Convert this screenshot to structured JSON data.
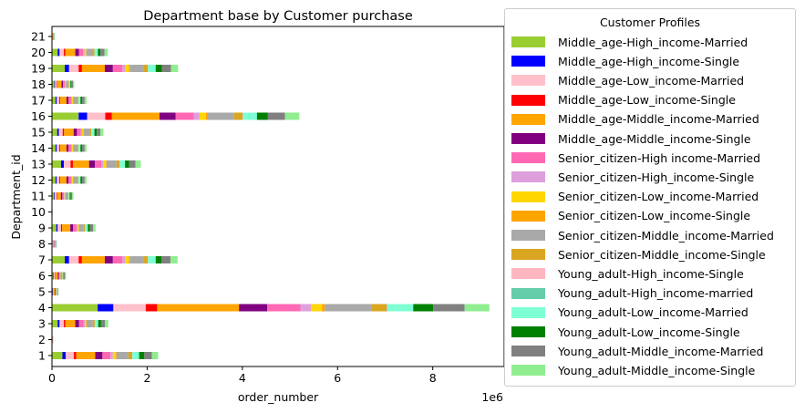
{
  "chart_data": {
    "type": "bar",
    "orientation": "horizontal",
    "stacked": true,
    "title": "Department base by Customer purchase",
    "xlabel": "order_number",
    "ylabel": "Department_id",
    "x_offset_label": "1e6",
    "xlim": [
      0,
      9.5
    ],
    "x_ticks": [
      "0",
      "2",
      "4",
      "6",
      "8"
    ],
    "legend_title": "Customer Profiles",
    "legend_position": "outside-right",
    "categories": [
      "1",
      "2",
      "3",
      "4",
      "5",
      "6",
      "7",
      "8",
      "9",
      "10",
      "11",
      "12",
      "13",
      "14",
      "15",
      "16",
      "17",
      "18",
      "19",
      "20",
      "21"
    ],
    "series": [
      {
        "name": "Middle_age-High_income-Married",
        "color": "#9acd32",
        "values": [
          0.22,
          0.003,
          0.12,
          0.96,
          0.014,
          0.03,
          0.27,
          0.01,
          0.09,
          0.001,
          0.045,
          0.075,
          0.19,
          0.075,
          0.11,
          0.56,
          0.075,
          0.05,
          0.27,
          0.12,
          0.006
        ]
      },
      {
        "name": "Middle_age-High_income-Single",
        "color": "#0000ff",
        "values": [
          0.07,
          0.001,
          0.04,
          0.33,
          0.005,
          0.01,
          0.09,
          0.003,
          0.03,
          0.0005,
          0.015,
          0.025,
          0.06,
          0.025,
          0.035,
          0.18,
          0.025,
          0.015,
          0.09,
          0.04,
          0.002
        ]
      },
      {
        "name": "Middle_age-Low_income-Married",
        "color": "#ffc0cb",
        "values": [
          0.17,
          0.002,
          0.09,
          0.68,
          0.01,
          0.02,
          0.2,
          0.007,
          0.07,
          0.001,
          0.035,
          0.055,
          0.14,
          0.055,
          0.08,
          0.38,
          0.055,
          0.035,
          0.2,
          0.09,
          0.004
        ]
      },
      {
        "name": "Middle_age-Low_income-Single",
        "color": "#ff0000",
        "values": [
          0.05,
          0.001,
          0.03,
          0.24,
          0.004,
          0.008,
          0.07,
          0.003,
          0.025,
          0.0003,
          0.012,
          0.02,
          0.05,
          0.02,
          0.03,
          0.14,
          0.02,
          0.012,
          0.07,
          0.03,
          0.001
        ]
      },
      {
        "name": "Middle_age-Middle_income-Married",
        "color": "#ffa500",
        "values": [
          0.4,
          0.005,
          0.21,
          1.72,
          0.025,
          0.055,
          0.48,
          0.018,
          0.17,
          0.002,
          0.08,
          0.13,
          0.34,
          0.13,
          0.2,
          1.0,
          0.13,
          0.09,
          0.48,
          0.21,
          0.011
        ]
      },
      {
        "name": "Middle_age-Middle_income-Single",
        "color": "#800080",
        "values": [
          0.15,
          0.002,
          0.08,
          0.59,
          0.009,
          0.02,
          0.17,
          0.006,
          0.06,
          0.001,
          0.03,
          0.045,
          0.12,
          0.045,
          0.07,
          0.34,
          0.045,
          0.03,
          0.17,
          0.075,
          0.004
        ]
      },
      {
        "name": "Senior_citizen-High income-Married",
        "color": "#ff69b4",
        "values": [
          0.17,
          0.002,
          0.09,
          0.7,
          0.01,
          0.02,
          0.2,
          0.007,
          0.07,
          0.001,
          0.035,
          0.055,
          0.14,
          0.055,
          0.08,
          0.38,
          0.055,
          0.035,
          0.2,
          0.09,
          0.004
        ]
      },
      {
        "name": "Senior_citizen-High_income-Single",
        "color": "#dda0dd",
        "values": [
          0.05,
          0.001,
          0.03,
          0.22,
          0.003,
          0.007,
          0.065,
          0.002,
          0.02,
          0.0003,
          0.011,
          0.018,
          0.045,
          0.018,
          0.027,
          0.12,
          0.018,
          0.011,
          0.065,
          0.03,
          0.001
        ]
      },
      {
        "name": "Senior_citizen-Low_income-Married",
        "color": "#ffd700",
        "values": [
          0.06,
          0.001,
          0.03,
          0.23,
          0.004,
          0.008,
          0.07,
          0.002,
          0.025,
          0.0003,
          0.012,
          0.019,
          0.048,
          0.019,
          0.028,
          0.13,
          0.019,
          0.012,
          0.07,
          0.03,
          0.001
        ]
      },
      {
        "name": "Senior_citizen-Low_income-Single",
        "color": "#ffa500",
        "values": [
          0.015,
          0.0002,
          0.008,
          0.06,
          0.001,
          0.002,
          0.018,
          0.0006,
          0.006,
          0.0001,
          0.003,
          0.005,
          0.013,
          0.005,
          0.007,
          0.035,
          0.005,
          0.003,
          0.018,
          0.008,
          0.0003
        ]
      },
      {
        "name": "Senior_citizen-Middle_income-Married",
        "color": "#a9a9a9",
        "values": [
          0.25,
          0.003,
          0.13,
          0.98,
          0.015,
          0.032,
          0.29,
          0.011,
          0.1,
          0.0013,
          0.05,
          0.08,
          0.21,
          0.08,
          0.12,
          0.56,
          0.08,
          0.05,
          0.29,
          0.13,
          0.007
        ]
      },
      {
        "name": "Senior_citizen-Middle_income-Single",
        "color": "#daa520",
        "values": [
          0.08,
          0.001,
          0.04,
          0.32,
          0.005,
          0.01,
          0.09,
          0.004,
          0.03,
          0.0004,
          0.016,
          0.026,
          0.065,
          0.026,
          0.038,
          0.18,
          0.026,
          0.016,
          0.09,
          0.04,
          0.002
        ]
      },
      {
        "name": "Young_adult-High_income-Single",
        "color": "#ffb6c1",
        "values": [
          0.003,
          0.0001,
          0.002,
          0.01,
          0.0002,
          0.0003,
          0.003,
          0.0001,
          0.001,
          0.0,
          0.0005,
          0.0008,
          0.002,
          0.0008,
          0.001,
          0.006,
          0.0008,
          0.0005,
          0.003,
          0.001,
          0.0001
        ]
      },
      {
        "name": "Young_adult-High_income-married",
        "color": "#66cdaa",
        "values": [
          0.003,
          0.0001,
          0.002,
          0.01,
          0.0002,
          0.0003,
          0.003,
          0.0001,
          0.001,
          0.0,
          0.0005,
          0.0008,
          0.002,
          0.0008,
          0.001,
          0.006,
          0.0008,
          0.0005,
          0.003,
          0.001,
          0.0001
        ]
      },
      {
        "name": "Young_adult-Low_income-Married",
        "color": "#7fffd4",
        "values": [
          0.14,
          0.002,
          0.07,
          0.54,
          0.008,
          0.018,
          0.16,
          0.006,
          0.055,
          0.0007,
          0.027,
          0.044,
          0.11,
          0.044,
          0.065,
          0.29,
          0.044,
          0.027,
          0.16,
          0.07,
          0.003
        ]
      },
      {
        "name": "Young_adult-Low_income-Single",
        "color": "#008000",
        "values": [
          0.11,
          0.001,
          0.06,
          0.42,
          0.006,
          0.014,
          0.12,
          0.005,
          0.045,
          0.0006,
          0.022,
          0.035,
          0.09,
          0.035,
          0.05,
          0.23,
          0.035,
          0.022,
          0.13,
          0.055,
          0.003
        ]
      },
      {
        "name": "Young_adult-Middle_income-Married",
        "color": "#808080",
        "values": [
          0.16,
          0.002,
          0.08,
          0.66,
          0.01,
          0.021,
          0.19,
          0.007,
          0.065,
          0.0008,
          0.032,
          0.052,
          0.13,
          0.052,
          0.076,
          0.36,
          0.052,
          0.032,
          0.19,
          0.085,
          0.004
        ]
      },
      {
        "name": "Young_adult-Middle_income-Single",
        "color": "#90ee90",
        "values": [
          0.13,
          0.002,
          0.07,
          0.52,
          0.008,
          0.017,
          0.15,
          0.005,
          0.052,
          0.0007,
          0.026,
          0.042,
          0.11,
          0.042,
          0.062,
          0.3,
          0.042,
          0.026,
          0.15,
          0.068,
          0.003
        ]
      }
    ]
  }
}
